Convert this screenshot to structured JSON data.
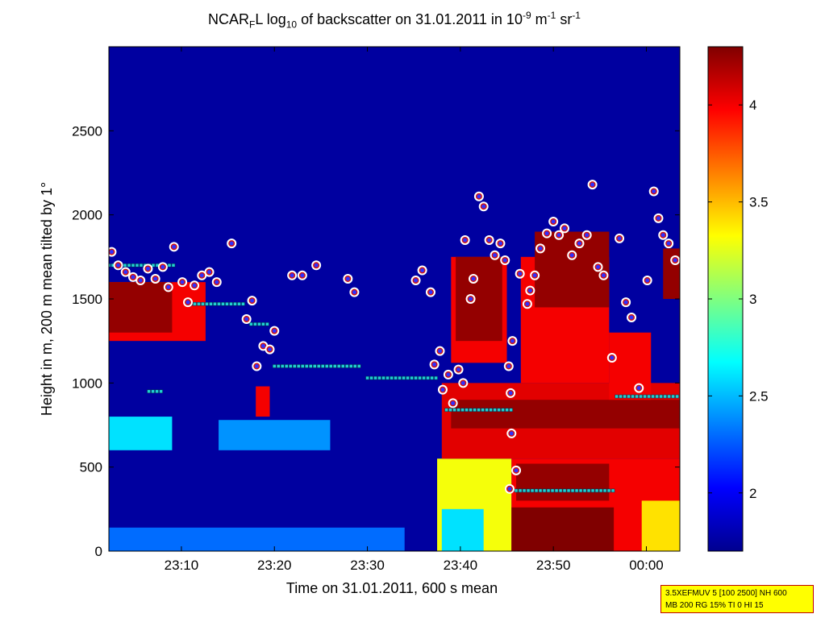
{
  "title": {
    "prefix": "NCAR",
    "sub1": "F",
    "mid": "L log",
    "sub2": "10",
    "text": " of backscatter on 31.01.2011 in 10",
    "sup1": "-9",
    "unit1": " m",
    "sup2": "-1",
    "unit2": " sr",
    "sup3": "-1"
  },
  "infobox": {
    "line1": "3.5XEFMUV 5 [100 2500] NH 600",
    "line2": "MB 200 RG 15% TI 0 HI 15"
  },
  "chart_data": {
    "type": "heatmap",
    "xlabel": "Time on 31.01.2011, 600 s mean",
    "ylabel": "Height in m, 200 m mean tilted by 1°",
    "x_range_minutes": [
      1382.2,
      1443.6
    ],
    "xticks": [
      {
        "label": "23:10",
        "value": 1390
      },
      {
        "label": "23:20",
        "value": 1400
      },
      {
        "label": "23:30",
        "value": 1410
      },
      {
        "label": "23:40",
        "value": 1420
      },
      {
        "label": "23:50",
        "value": 1430
      },
      {
        "label": "00:00",
        "value": 1440
      }
    ],
    "ylim": [
      0,
      3000
    ],
    "yticks": [
      {
        "label": "0",
        "value": 0
      },
      {
        "label": "500",
        "value": 500
      },
      {
        "label": "1000",
        "value": 1000
      },
      {
        "label": "1500",
        "value": 1500
      },
      {
        "label": "2000",
        "value": 2000
      },
      {
        "label": "2500",
        "value": 2500
      }
    ],
    "colorbar": {
      "range": [
        1.7,
        4.3
      ],
      "ticks": [
        {
          "label": "2",
          "value": 2
        },
        {
          "label": "2.5",
          "value": 2.5
        },
        {
          "label": "3",
          "value": 3
        },
        {
          "label": "3.5",
          "value": 3.5
        },
        {
          "label": "4",
          "value": 4
        }
      ],
      "colormap": "jet"
    },
    "background_value": 1.75,
    "regions": [
      {
        "x0": 1382.2,
        "x1": 1392.6,
        "y0": 1250,
        "y1": 1600,
        "value": 4.0
      },
      {
        "x0": 1382.2,
        "x1": 1389.0,
        "y0": 1300,
        "y1": 1600,
        "value": 4.25
      },
      {
        "x0": 1382.2,
        "x1": 1389.0,
        "y0": 600,
        "y1": 800,
        "value": 2.6
      },
      {
        "x0": 1394.0,
        "x1": 1406.0,
        "y0": 600,
        "y1": 780,
        "value": 2.4
      },
      {
        "x0": 1382.2,
        "x1": 1414.0,
        "y0": 0,
        "y1": 140,
        "value": 2.3
      },
      {
        "x0": 1398.0,
        "x1": 1399.5,
        "y0": 800,
        "y1": 980,
        "value": 4.0
      },
      {
        "x0": 1419.0,
        "x1": 1425.0,
        "y0": 1120,
        "y1": 1750,
        "value": 4.0
      },
      {
        "x0": 1419.5,
        "x1": 1424.5,
        "y0": 1250,
        "y1": 1750,
        "value": 4.25
      },
      {
        "x0": 1417.5,
        "x1": 1425.5,
        "y0": 0,
        "y1": 550,
        "value": 3.3
      },
      {
        "x0": 1418.0,
        "x1": 1422.5,
        "y0": 0,
        "y1": 250,
        "value": 2.6
      },
      {
        "x0": 1425.5,
        "x1": 1443.6,
        "y0": 0,
        "y1": 550,
        "value": 4.0
      },
      {
        "x0": 1418.0,
        "x1": 1443.6,
        "y0": 550,
        "y1": 1000,
        "value": 4.05
      },
      {
        "x0": 1419.0,
        "x1": 1443.6,
        "y0": 730,
        "y1": 900,
        "value": 4.25
      },
      {
        "x0": 1425.5,
        "x1": 1436.5,
        "y0": 0,
        "y1": 260,
        "value": 4.3
      },
      {
        "x0": 1426.0,
        "x1": 1436.0,
        "y0": 300,
        "y1": 520,
        "value": 4.25
      },
      {
        "x0": 1426.5,
        "x1": 1436.0,
        "y0": 1000,
        "y1": 1750,
        "value": 4.0
      },
      {
        "x0": 1428.0,
        "x1": 1436.0,
        "y0": 1450,
        "y1": 1900,
        "value": 4.25
      },
      {
        "x0": 1436.0,
        "x1": 1440.5,
        "y0": 900,
        "y1": 1300,
        "value": 4.0
      },
      {
        "x0": 1439.5,
        "x1": 1443.6,
        "y0": 0,
        "y1": 300,
        "value": 3.4
      },
      {
        "x0": 1441.8,
        "x1": 1443.6,
        "y0": 1500,
        "y1": 1800,
        "value": 4.25
      }
    ],
    "cloud_base_markers": [
      {
        "x": 1382.5,
        "y": 1780
      },
      {
        "x": 1383.2,
        "y": 1700
      },
      {
        "x": 1384.0,
        "y": 1660
      },
      {
        "x": 1384.8,
        "y": 1630
      },
      {
        "x": 1385.6,
        "y": 1610
      },
      {
        "x": 1386.4,
        "y": 1680
      },
      {
        "x": 1387.2,
        "y": 1620
      },
      {
        "x": 1388.0,
        "y": 1690
      },
      {
        "x": 1388.6,
        "y": 1570
      },
      {
        "x": 1389.2,
        "y": 1810
      },
      {
        "x": 1390.1,
        "y": 1600
      },
      {
        "x": 1390.7,
        "y": 1480
      },
      {
        "x": 1391.4,
        "y": 1580
      },
      {
        "x": 1392.2,
        "y": 1640
      },
      {
        "x": 1393.0,
        "y": 1660
      },
      {
        "x": 1393.8,
        "y": 1600
      },
      {
        "x": 1395.4,
        "y": 1830
      },
      {
        "x": 1397.0,
        "y": 1380
      },
      {
        "x": 1397.6,
        "y": 1490
      },
      {
        "x": 1398.1,
        "y": 1100
      },
      {
        "x": 1398.8,
        "y": 1220
      },
      {
        "x": 1399.5,
        "y": 1200
      },
      {
        "x": 1400.0,
        "y": 1310
      },
      {
        "x": 1401.9,
        "y": 1640
      },
      {
        "x": 1403.0,
        "y": 1640
      },
      {
        "x": 1404.5,
        "y": 1700
      },
      {
        "x": 1407.9,
        "y": 1620
      },
      {
        "x": 1408.6,
        "y": 1540
      },
      {
        "x": 1415.2,
        "y": 1610
      },
      {
        "x": 1415.9,
        "y": 1670
      },
      {
        "x": 1416.8,
        "y": 1540
      },
      {
        "x": 1417.2,
        "y": 1110
      },
      {
        "x": 1417.8,
        "y": 1190
      },
      {
        "x": 1418.1,
        "y": 960
      },
      {
        "x": 1418.7,
        "y": 1050
      },
      {
        "x": 1419.2,
        "y": 880
      },
      {
        "x": 1419.8,
        "y": 1080
      },
      {
        "x": 1420.3,
        "y": 1000
      },
      {
        "x": 1420.5,
        "y": 1850
      },
      {
        "x": 1421.1,
        "y": 1500
      },
      {
        "x": 1421.4,
        "y": 1620
      },
      {
        "x": 1422.0,
        "y": 2110
      },
      {
        "x": 1422.5,
        "y": 2050
      },
      {
        "x": 1423.1,
        "y": 1850
      },
      {
        "x": 1423.7,
        "y": 1760
      },
      {
        "x": 1424.3,
        "y": 1830
      },
      {
        "x": 1424.8,
        "y": 1730
      },
      {
        "x": 1425.5,
        "y": 700
      },
      {
        "x": 1426.0,
        "y": 480
      },
      {
        "x": 1425.2,
        "y": 1100
      },
      {
        "x": 1425.6,
        "y": 1250
      },
      {
        "x": 1426.4,
        "y": 1650
      },
      {
        "x": 1427.2,
        "y": 1470
      },
      {
        "x": 1427.5,
        "y": 1550
      },
      {
        "x": 1428.0,
        "y": 1640
      },
      {
        "x": 1428.6,
        "y": 1800
      },
      {
        "x": 1429.3,
        "y": 1890
      },
      {
        "x": 1430.0,
        "y": 1960
      },
      {
        "x": 1430.6,
        "y": 1880
      },
      {
        "x": 1431.2,
        "y": 1920
      },
      {
        "x": 1432.0,
        "y": 1760
      },
      {
        "x": 1432.8,
        "y": 1830
      },
      {
        "x": 1433.6,
        "y": 1880
      },
      {
        "x": 1434.2,
        "y": 2180
      },
      {
        "x": 1434.8,
        "y": 1690
      },
      {
        "x": 1435.4,
        "y": 1640
      },
      {
        "x": 1436.3,
        "y": 1150
      },
      {
        "x": 1437.1,
        "y": 1860
      },
      {
        "x": 1437.8,
        "y": 1480
      },
      {
        "x": 1438.4,
        "y": 1390
      },
      {
        "x": 1439.2,
        "y": 970
      },
      {
        "x": 1440.1,
        "y": 1610
      },
      {
        "x": 1440.8,
        "y": 2140
      },
      {
        "x": 1441.3,
        "y": 1980
      },
      {
        "x": 1441.8,
        "y": 1880
      },
      {
        "x": 1442.4,
        "y": 1830
      },
      {
        "x": 1443.1,
        "y": 1730
      },
      {
        "x": 1425.3,
        "y": 370
      },
      {
        "x": 1425.4,
        "y": 940
      }
    ],
    "layer_markers": [
      {
        "x0": 1391.0,
        "x1": 1397.0,
        "y": 1470
      },
      {
        "x0": 1397.5,
        "x1": 1399.5,
        "y": 1350
      },
      {
        "x0": 1400.0,
        "x1": 1409.5,
        "y": 1100
      },
      {
        "x0": 1410.0,
        "x1": 1417.5,
        "y": 1030
      },
      {
        "x0": 1418.5,
        "x1": 1425.5,
        "y": 840
      },
      {
        "x0": 1426.0,
        "x1": 1436.5,
        "y": 360
      },
      {
        "x0": 1436.8,
        "x1": 1443.6,
        "y": 920
      },
      {
        "x0": 1382.2,
        "x1": 1389.4,
        "y": 1700
      },
      {
        "x0": 1386.5,
        "x1": 1388.2,
        "y": 950
      }
    ]
  }
}
